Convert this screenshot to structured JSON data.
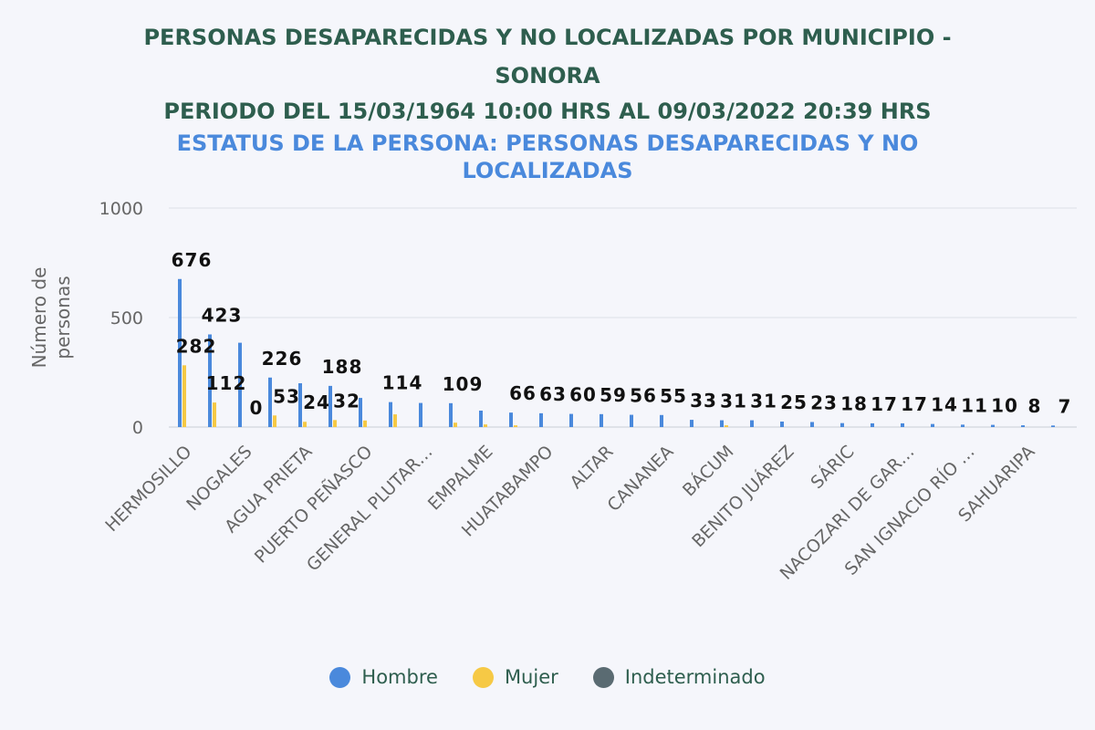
{
  "chart_data": {
    "type": "bar",
    "title": "PERSONAS DESAPARECIDAS Y NO LOCALIZADAS POR MUNICIPIO - SONORA",
    "subtitle": "PERIODO DEL 15/03/1964 10:00 HRS AL 09/03/2022 20:39 HRS",
    "subtitle2": "ESTATUS DE LA PERSONA: PERSONAS DESAPARECIDAS Y NO LOCALIZADAS",
    "ylabel": "Número de personas",
    "xlabel": "",
    "ylim": [
      0,
      1000
    ],
    "yticks": [
      0,
      500,
      1000
    ],
    "grid": true,
    "legend_position": "bottom",
    "categories": [
      "HERMOSILLO",
      "",
      "NOGALES",
      "",
      "AGUA PRIETA",
      "",
      "PUERTO PEÑASCO",
      "",
      "GENERAL PLUTAR…",
      "",
      "EMPALME",
      "",
      "HUATABAMPO",
      "",
      "ALTAR",
      "",
      "CANANEA",
      "",
      "BÁCUM",
      "",
      "BENITO JUÁREZ",
      "",
      "SÁRIC",
      "",
      "NACOZARI DE GAR…",
      "",
      "SAN IGNACIO RÍO …",
      "",
      "SAHUARIPA",
      ""
    ],
    "series": [
      {
        "name": "Hombre",
        "color": "#4a89dc",
        "values": [
          676,
          423,
          385,
          226,
          200,
          188,
          133,
          114,
          110,
          109,
          75,
          66,
          63,
          60,
          59,
          56,
          55,
          33,
          31,
          31,
          25,
          23,
          18,
          17,
          17,
          14,
          11,
          10,
          8,
          7
        ]
      },
      {
        "name": "Mujer",
        "color": "#f6c945",
        "values": [
          282,
          112,
          0,
          53,
          24,
          32,
          30,
          58,
          0,
          20,
          12,
          8,
          0,
          0,
          0,
          0,
          0,
          0,
          8,
          0,
          0,
          0,
          0,
          0,
          0,
          0,
          0,
          0,
          0,
          0
        ]
      },
      {
        "name": "Indeterminado",
        "color": "#5a6b72",
        "values": [
          0,
          0,
          0,
          0,
          0,
          0,
          0,
          0,
          0,
          0,
          0,
          0,
          0,
          0,
          0,
          0,
          0,
          0,
          0,
          0,
          0,
          0,
          0,
          0,
          0,
          0,
          0,
          0,
          0,
          0
        ]
      }
    ],
    "labels": [
      {
        "index": 0,
        "value": "676"
      },
      {
        "index": 0,
        "value": "282",
        "series": "Mujer"
      },
      {
        "index": 1,
        "value": "423"
      },
      {
        "index": 1,
        "value": "112",
        "series": "Mujer"
      },
      {
        "index": 2,
        "value": "0",
        "series": "Mujer"
      },
      {
        "index": 3,
        "value": "226"
      },
      {
        "index": 3,
        "value": "53",
        "series": "Mujer"
      },
      {
        "index": 4,
        "value": "24",
        "series": "Mujer"
      },
      {
        "index": 5,
        "value": "188"
      },
      {
        "index": 5,
        "value": "32",
        "series": "Mujer"
      },
      {
        "index": 7,
        "value": "114"
      },
      {
        "index": 9,
        "value": "109"
      },
      {
        "index": 11,
        "value": "66"
      },
      {
        "index": 12,
        "value": "63"
      },
      {
        "index": 13,
        "value": "60"
      },
      {
        "index": 14,
        "value": "59"
      },
      {
        "index": 15,
        "value": "56"
      },
      {
        "index": 16,
        "value": "55"
      },
      {
        "index": 17,
        "value": "33"
      },
      {
        "index": 18,
        "value": "31"
      },
      {
        "index": 19,
        "value": "31"
      },
      {
        "index": 20,
        "value": "25"
      },
      {
        "index": 21,
        "value": "23"
      },
      {
        "index": 22,
        "value": "18"
      },
      {
        "index": 23,
        "value": "17"
      },
      {
        "index": 24,
        "value": "17"
      },
      {
        "index": 25,
        "value": "14"
      },
      {
        "index": 26,
        "value": "11"
      },
      {
        "index": 27,
        "value": "10"
      },
      {
        "index": 28,
        "value": "8"
      },
      {
        "index": 29,
        "value": "7"
      }
    ]
  },
  "legend": {
    "items": [
      {
        "label": "Hombre",
        "color": "#4a89dc"
      },
      {
        "label": "Mujer",
        "color": "#f6c945"
      },
      {
        "label": "Indeterminado",
        "color": "#5a6b72"
      }
    ]
  }
}
